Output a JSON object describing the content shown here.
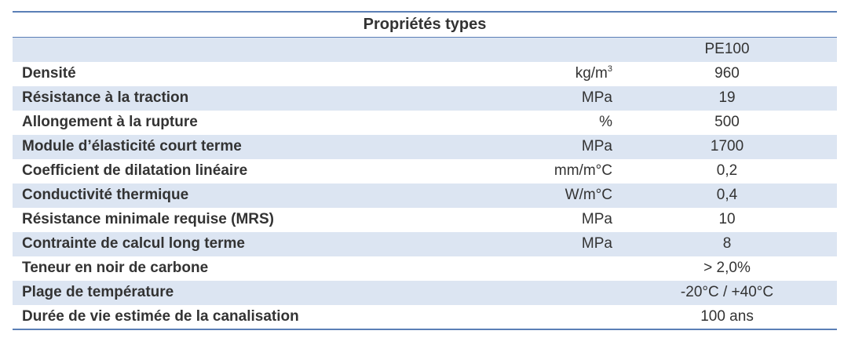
{
  "table": {
    "title": "Propriétés types",
    "material_header": "PE100",
    "rows": [
      {
        "property": "Densité",
        "unit_base": "kg/m",
        "unit_sup": "3",
        "value": "960"
      },
      {
        "property": "Résistance à la traction",
        "unit": "MPa",
        "value": "19"
      },
      {
        "property": "Allongement à la rupture",
        "unit": "%",
        "value": "500"
      },
      {
        "property": "Module d’élasticité court terme",
        "unit": "MPa",
        "value": "1700"
      },
      {
        "property": "Coefficient de dilatation linéaire",
        "unit": "mm/m°C",
        "value": "0,2"
      },
      {
        "property": "Conductivité thermique",
        "unit": "W/m°C",
        "value": "0,4"
      },
      {
        "property": "Résistance minimale requise (MRS)",
        "unit": "MPa",
        "value": "10"
      },
      {
        "property": "Contrainte de calcul long terme",
        "unit": "MPa",
        "value": "8"
      },
      {
        "property": "Teneur en noir de carbone",
        "unit": "",
        "value": "> 2,0%"
      },
      {
        "property": "Plage de température",
        "unit": "",
        "value": "-20°C / +40°C"
      },
      {
        "property": "Durée de vie estimée de la canalisation",
        "unit": "",
        "value": "100 ans"
      }
    ]
  },
  "colors": {
    "border_accent": "#5b7fb6",
    "row_shade": "#dce5f2",
    "text": "#333333"
  }
}
